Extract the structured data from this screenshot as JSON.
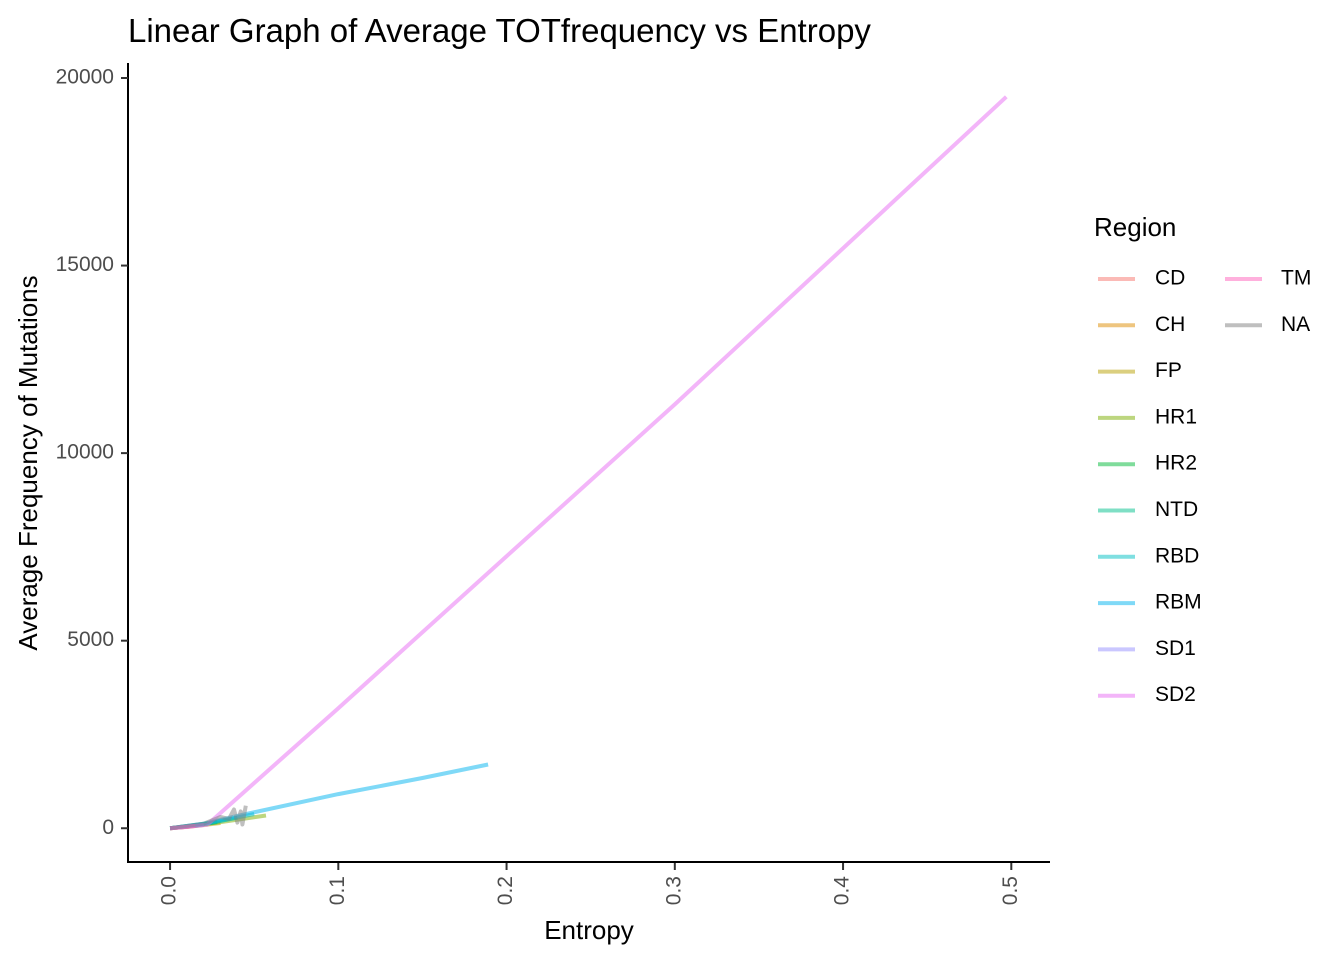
{
  "chart_data": {
    "type": "line",
    "title": "Linear Graph of Average TOTfrequency vs Entropy",
    "xlabel": "Entropy",
    "ylabel": "Average Frequency of Mutations",
    "xlim": [
      -0.025,
      0.523
    ],
    "ylim": [
      -900,
      20400
    ],
    "x_ticks": [
      0.0,
      0.1,
      0.2,
      0.3,
      0.4,
      0.5
    ],
    "x_tick_labels": [
      "0.0",
      "0.1",
      "0.2",
      "0.3",
      "0.4",
      "0.5"
    ],
    "y_ticks": [
      0,
      5000,
      10000,
      15000,
      20000
    ],
    "y_tick_labels": [
      "0",
      "5000",
      "10000",
      "15000",
      "20000"
    ],
    "grid": false,
    "legend": {
      "title": "Region",
      "placement": "right",
      "columns": 2
    },
    "series": [
      {
        "name": "CD",
        "color": "#F8766D",
        "x": [
          0.0,
          0.005,
          0.012
        ],
        "y": [
          0,
          20,
          40
        ]
      },
      {
        "name": "CH",
        "color": "#DE8C00",
        "x": [
          0.0,
          0.01,
          0.02
        ],
        "y": [
          0,
          40,
          90
        ]
      },
      {
        "name": "FP",
        "color": "#B79F00",
        "x": [
          0.0,
          0.015,
          0.03
        ],
        "y": [
          0,
          60,
          140
        ]
      },
      {
        "name": "HR1",
        "color": "#7CAE00",
        "x": [
          0.0,
          0.03,
          0.057
        ],
        "y": [
          0,
          160,
          340
        ]
      },
      {
        "name": "HR2",
        "color": "#00BA38",
        "x": [
          0.0,
          0.015,
          0.028
        ],
        "y": [
          0,
          70,
          160
        ]
      },
      {
        "name": "NTD",
        "color": "#00C08B",
        "x": [
          0.0,
          0.02,
          0.04
        ],
        "y": [
          0,
          110,
          280
        ]
      },
      {
        "name": "RBD",
        "color": "#00BFC4",
        "x": [
          0.0,
          0.025,
          0.05
        ],
        "y": [
          0,
          150,
          380
        ]
      },
      {
        "name": "RBM",
        "color": "#00B4F0",
        "x": [
          0.0,
          0.02,
          0.04,
          0.1,
          0.15,
          0.189
        ],
        "y": [
          0,
          120,
          330,
          910,
          1340,
          1700
        ]
      },
      {
        "name": "SD1",
        "color": "#9590FF",
        "x": [
          0.0,
          0.01,
          0.02
        ],
        "y": [
          0,
          40,
          90
        ]
      },
      {
        "name": "SD2",
        "color": "#E76BF3",
        "x": [
          0.0,
          0.012,
          0.022,
          0.1,
          0.3,
          0.497
        ],
        "y": [
          0,
          50,
          90,
          3200,
          11300,
          19500
        ]
      },
      {
        "name": "TM",
        "color": "#FF62BC",
        "x": [
          0.0,
          0.008,
          0.015
        ],
        "y": [
          0,
          30,
          60
        ]
      },
      {
        "name": "NA",
        "color": "#7F7F7F",
        "x": [
          0.0,
          0.02,
          0.03,
          0.035,
          0.038,
          0.04,
          0.042,
          0.043,
          0.045
        ],
        "y": [
          0,
          120,
          300,
          250,
          500,
          150,
          450,
          100,
          600
        ]
      }
    ]
  }
}
